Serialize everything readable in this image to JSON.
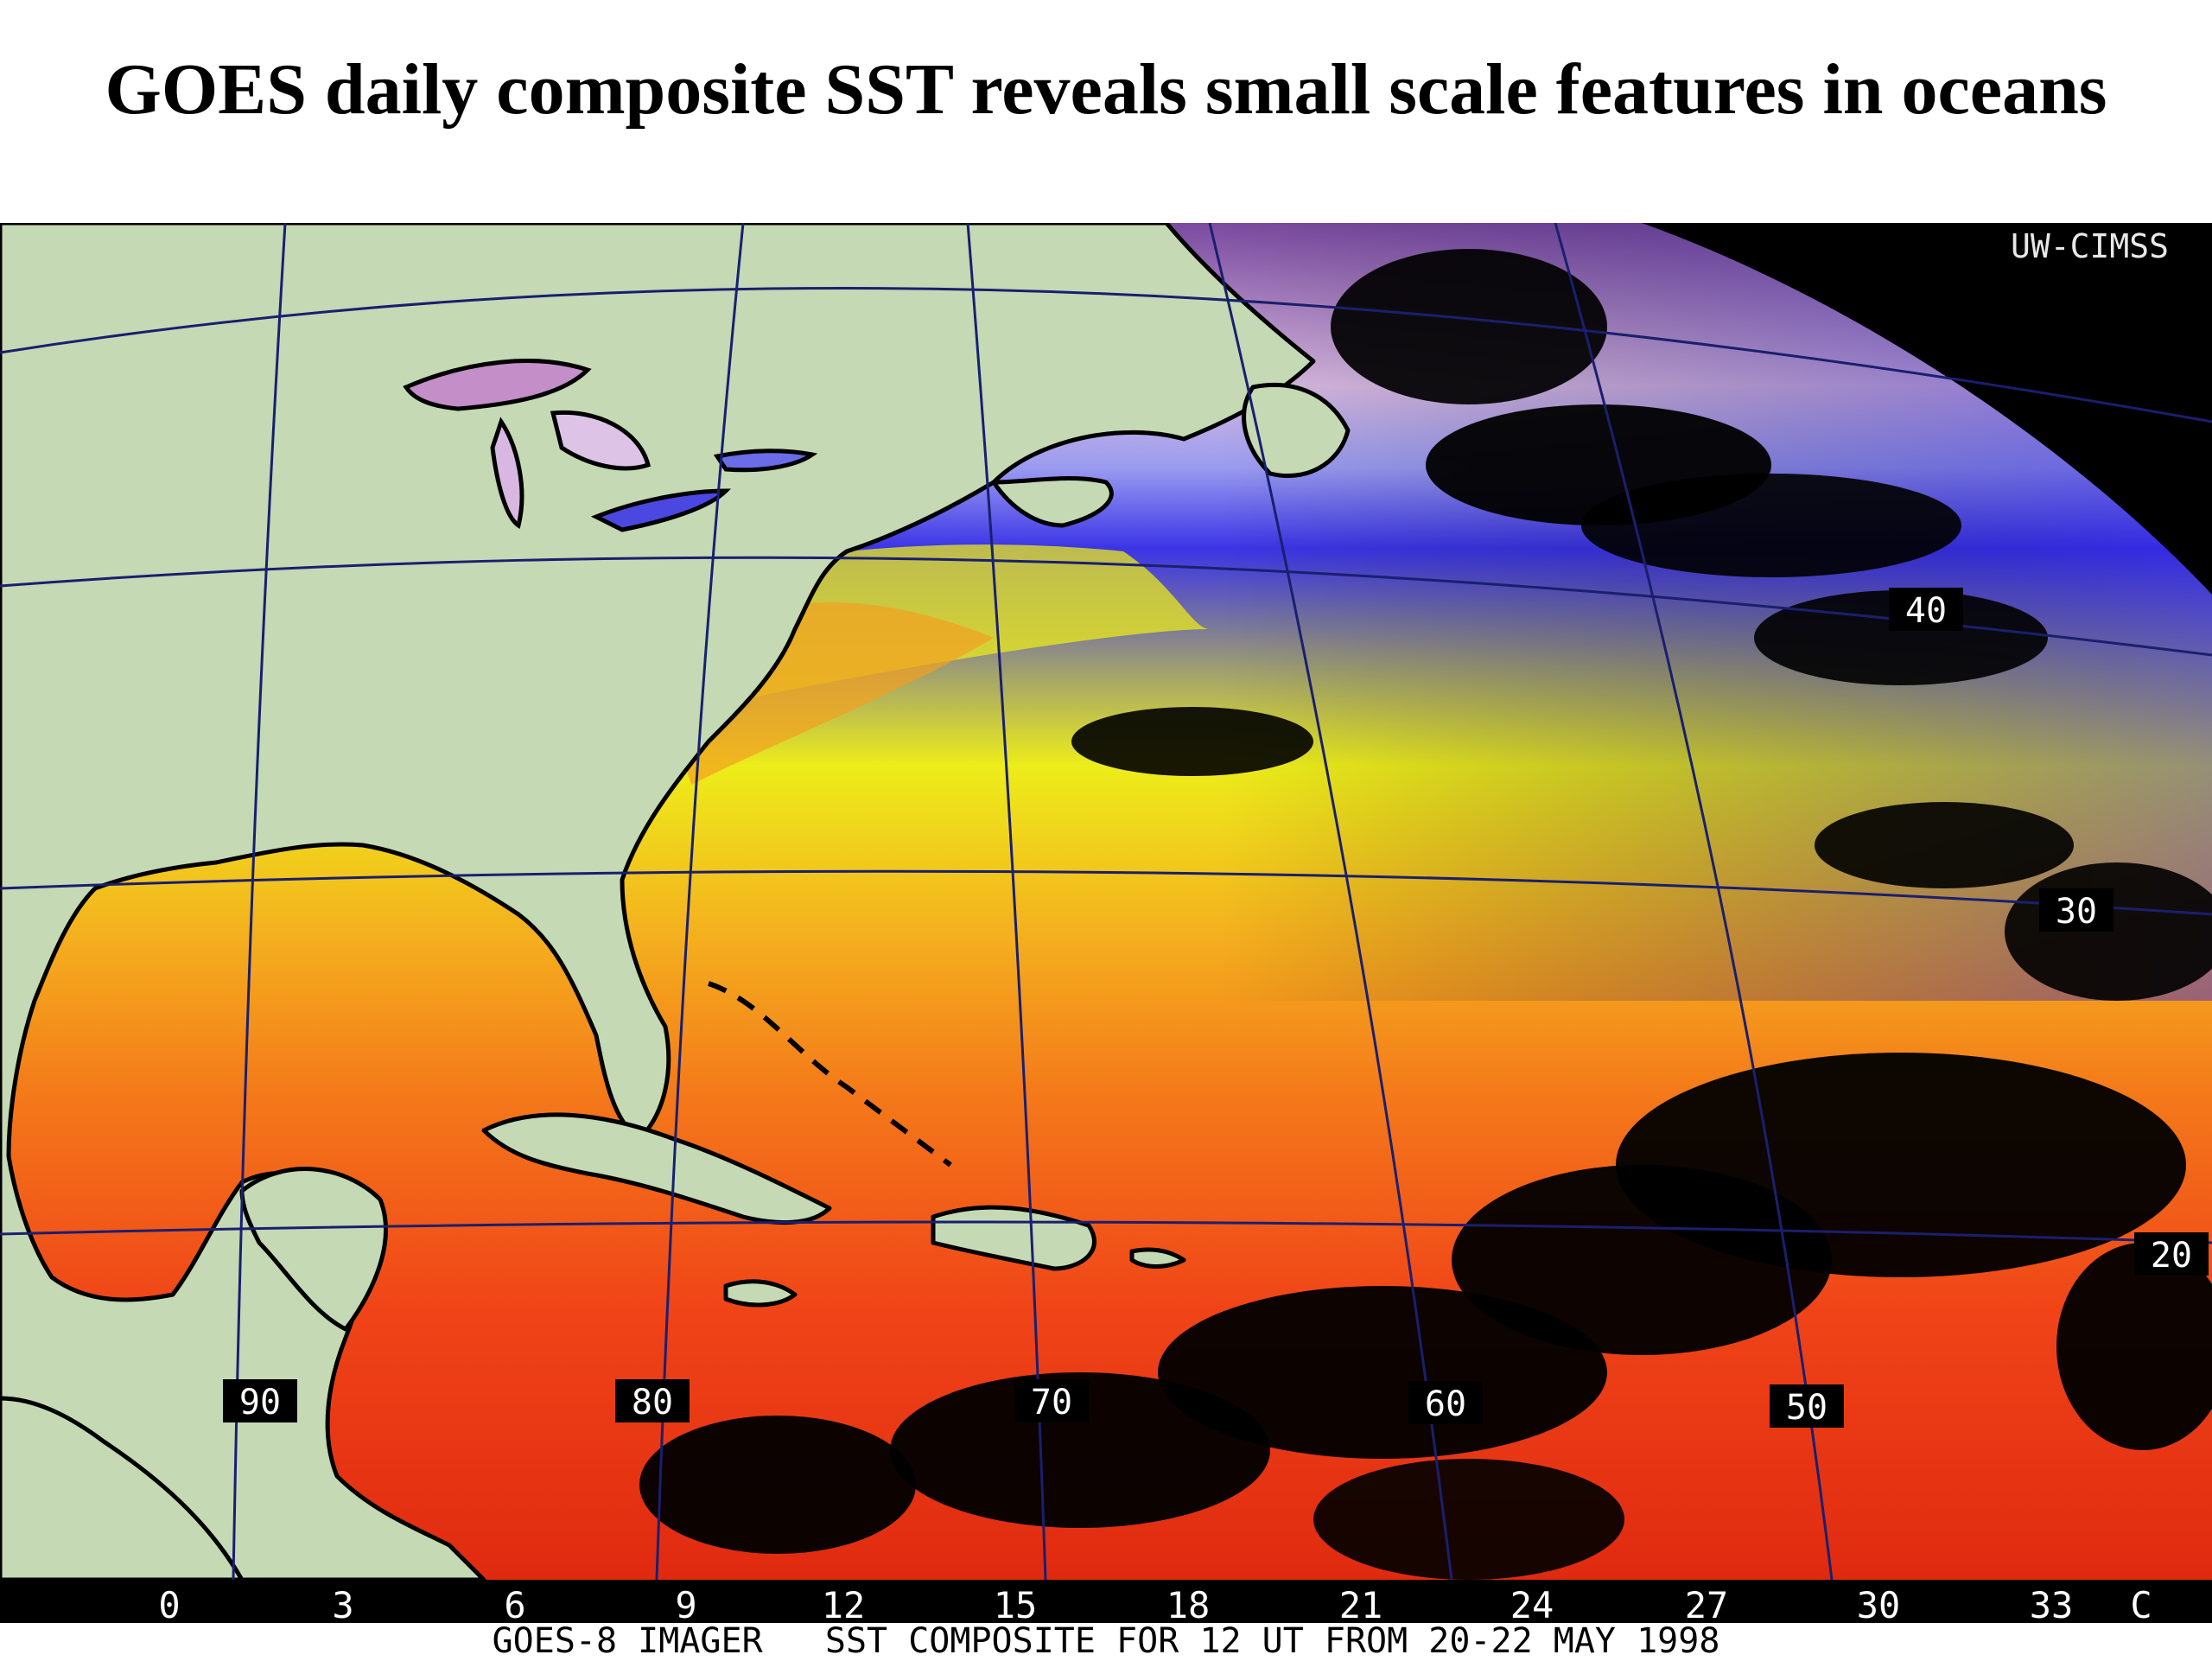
{
  "slide": {
    "title": "GOES daily composite SST reveals small scale features in oceans"
  },
  "map": {
    "watermark": "UW-CIMSS",
    "longitude_labels": [
      "90",
      "80",
      "70",
      "60",
      "50"
    ],
    "latitude_labels": [
      "40",
      "30",
      "20"
    ],
    "colors": {
      "land": "#c4d9b4",
      "coastline": "#000000",
      "grid": "#1a1f6e",
      "cloud_mask": "#000000"
    }
  },
  "colorbar": {
    "ticks": [
      "0",
      "3",
      "6",
      "9",
      "12",
      "15",
      "18",
      "21",
      "24",
      "27",
      "30",
      "33"
    ],
    "unit": "C",
    "range_c": [
      0,
      35
    ],
    "palette": [
      "#6a0a8a",
      "#a35bb8",
      "#dcc6e2",
      "#ffffff",
      "#8a8cf2",
      "#2a1fe8",
      "#8a8a6a",
      "#f2f20a",
      "#f5a21c",
      "#ff4a10",
      "#c00000",
      "#500000"
    ],
    "caption": "GOES-8 IMAGER   SST COMPOSITE FOR 12 UT FROM 20-22 MAY 1998"
  }
}
